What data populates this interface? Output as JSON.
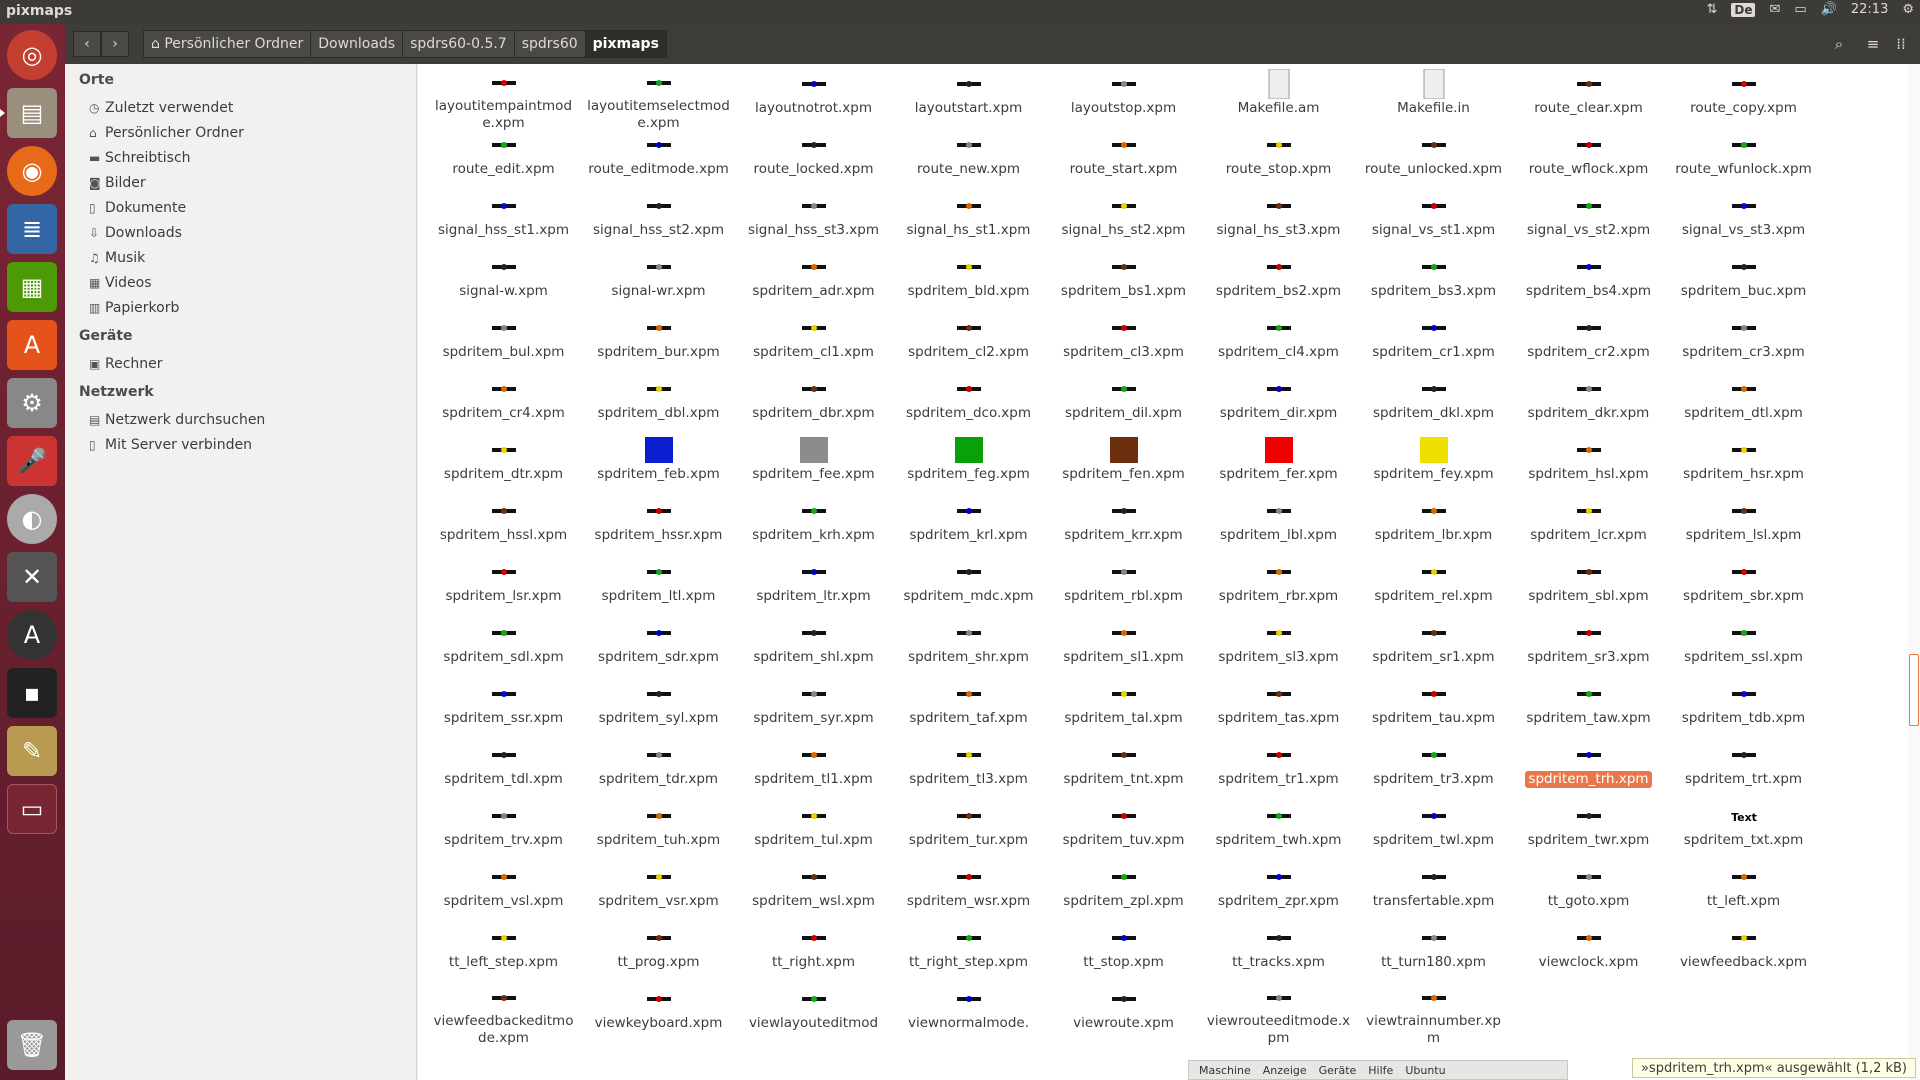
{
  "panel": {
    "title": "pixmaps",
    "keyboard": "De",
    "clock": "22:13"
  },
  "toolbar": {
    "breadcrumbs": [
      "Persönlicher Ordner",
      "Downloads",
      "spdrs60-0.5.7",
      "spdrs60",
      "pixmaps"
    ]
  },
  "sidebar": {
    "sections": [
      {
        "title": "Orte",
        "items": [
          "Zuletzt verwendet",
          "Persönlicher Ordner",
          "Schreibtisch",
          "Bilder",
          "Dokumente",
          "Downloads",
          "Musik",
          "Videos",
          "Papierkorb"
        ]
      },
      {
        "title": "Geräte",
        "items": [
          "Rechner"
        ]
      },
      {
        "title": "Netzwerk",
        "items": [
          "Netzwerk durchsuchen",
          "Mit Server verbinden"
        ]
      }
    ]
  },
  "files": [
    "layoutitempaintmode.xpm",
    "layoutitemselectmode.xpm",
    "layoutnotrot.xpm",
    "layoutstart.xpm",
    "layoutstop.xpm",
    "Makefile.am",
    "Makefile.in",
    "route_clear.xpm",
    "route_copy.xpm",
    "route_edit.xpm",
    "route_editmode.xpm",
    "route_locked.xpm",
    "route_new.xpm",
    "route_start.xpm",
    "route_stop.xpm",
    "route_unlocked.xpm",
    "route_wflock.xpm",
    "route_wfunlock.xpm",
    "signal_hss_st1.xpm",
    "signal_hss_st2.xpm",
    "signal_hss_st3.xpm",
    "signal_hs_st1.xpm",
    "signal_hs_st2.xpm",
    "signal_hs_st3.xpm",
    "signal_vs_st1.xpm",
    "signal_vs_st2.xpm",
    "signal_vs_st3.xpm",
    "signal-w.xpm",
    "signal-wr.xpm",
    "spdritem_adr.xpm",
    "spdritem_bld.xpm",
    "spdritem_bs1.xpm",
    "spdritem_bs2.xpm",
    "spdritem_bs3.xpm",
    "spdritem_bs4.xpm",
    "spdritem_buc.xpm",
    "spdritem_bul.xpm",
    "spdritem_bur.xpm",
    "spdritem_cl1.xpm",
    "spdritem_cl2.xpm",
    "spdritem_cl3.xpm",
    "spdritem_cl4.xpm",
    "spdritem_cr1.xpm",
    "spdritem_cr2.xpm",
    "spdritem_cr3.xpm",
    "spdritem_cr4.xpm",
    "spdritem_dbl.xpm",
    "spdritem_dbr.xpm",
    "spdritem_dco.xpm",
    "spdritem_dil.xpm",
    "spdritem_dir.xpm",
    "spdritem_dkl.xpm",
    "spdritem_dkr.xpm",
    "spdritem_dtl.xpm",
    "spdritem_dtr.xpm",
    "spdritem_feb.xpm",
    "spdritem_fee.xpm",
    "spdritem_feg.xpm",
    "spdritem_fen.xpm",
    "spdritem_fer.xpm",
    "spdritem_fey.xpm",
    "spdritem_hsl.xpm",
    "spdritem_hsr.xpm",
    "spdritem_hssl.xpm",
    "spdritem_hssr.xpm",
    "spdritem_krh.xpm",
    "spdritem_krl.xpm",
    "spdritem_krr.xpm",
    "spdritem_lbl.xpm",
    "spdritem_lbr.xpm",
    "spdritem_lcr.xpm",
    "spdritem_lsl.xpm",
    "spdritem_lsr.xpm",
    "spdritem_ltl.xpm",
    "spdritem_ltr.xpm",
    "spdritem_mdc.xpm",
    "spdritem_rbl.xpm",
    "spdritem_rbr.xpm",
    "spdritem_rel.xpm",
    "spdritem_sbl.xpm",
    "spdritem_sbr.xpm",
    "spdritem_sdl.xpm",
    "spdritem_sdr.xpm",
    "spdritem_shl.xpm",
    "spdritem_shr.xpm",
    "spdritem_sl1.xpm",
    "spdritem_sl3.xpm",
    "spdritem_sr1.xpm",
    "spdritem_sr3.xpm",
    "spdritem_ssl.xpm",
    "spdritem_ssr.xpm",
    "spdritem_syl.xpm",
    "spdritem_syr.xpm",
    "spdritem_taf.xpm",
    "spdritem_tal.xpm",
    "spdritem_tas.xpm",
    "spdritem_tau.xpm",
    "spdritem_taw.xpm",
    "spdritem_tdb.xpm",
    "spdritem_tdl.xpm",
    "spdritem_tdr.xpm",
    "spdritem_tl1.xpm",
    "spdritem_tl3.xpm",
    "spdritem_tnt.xpm",
    "spdritem_tr1.xpm",
    "spdritem_tr3.xpm",
    "spdritem_trh.xpm",
    "spdritem_trt.xpm",
    "spdritem_trv.xpm",
    "spdritem_tuh.xpm",
    "spdritem_tul.xpm",
    "spdritem_tur.xpm",
    "spdritem_tuv.xpm",
    "spdritem_twh.xpm",
    "spdritem_twl.xpm",
    "spdritem_twr.xpm",
    "spdritem_txt.xpm",
    "spdritem_vsl.xpm",
    "spdritem_vsr.xpm",
    "spdritem_wsl.xpm",
    "spdritem_wsr.xpm",
    "spdritem_zpl.xpm",
    "spdritem_zpr.xpm",
    "transfertable.xpm",
    "tt_goto.xpm",
    "tt_left.xpm",
    "tt_left_step.xpm",
    "tt_prog.xpm",
    "tt_right.xpm",
    "tt_right_step.xpm",
    "tt_stop.xpm",
    "tt_tracks.xpm",
    "tt_turn180.xpm",
    "viewclock.xpm",
    "viewfeedback.xpm",
    "viewfeedbackeditmode.xpm",
    "viewkeyboard.xpm",
    "viewlayouteditmod",
    "viewnormalmode.",
    "viewroute.xpm",
    "viewrouteeditmode.xpm",
    "viewtrainnumber.xpm"
  ],
  "selected_file": "spdritem_trh.xpm",
  "status_text": "»spdritem_trh.xpm« ausgewählt  (1,2 kB)",
  "vbox_menu": [
    "Maschine",
    "Anzeige",
    "Geräte",
    "Hilfe",
    "Ubuntu"
  ],
  "txt_icon_label": "Text"
}
